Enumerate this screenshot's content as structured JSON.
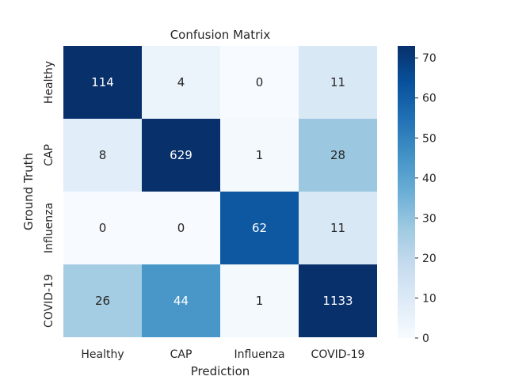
{
  "chart_data": {
    "type": "heatmap",
    "title": "Confusion Matrix",
    "xlabel": "Prediction",
    "ylabel": "Ground Truth",
    "x_categories": [
      "Healthy",
      "CAP",
      "Influenza",
      "COVID-19"
    ],
    "y_categories": [
      "Healthy",
      "CAP",
      "Influenza",
      "COVID-19"
    ],
    "values": [
      [
        114,
        4,
        0,
        11
      ],
      [
        8,
        629,
        1,
        28
      ],
      [
        0,
        0,
        62,
        11
      ],
      [
        26,
        44,
        1,
        1133
      ]
    ],
    "colorbar": {
      "min": 0,
      "max": 73,
      "ticks": [
        0,
        10,
        20,
        30,
        40,
        50,
        60,
        70
      ],
      "colormap": "Blues"
    }
  }
}
